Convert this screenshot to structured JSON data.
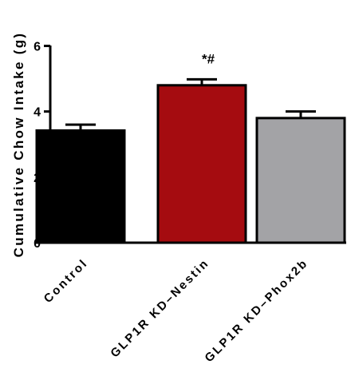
{
  "chart_data": {
    "type": "bar",
    "ylabel": "Cumulative Chow Intake (g)",
    "xlabel": "",
    "ylim": [
      0,
      6
    ],
    "yticks": [
      "0",
      "2",
      "4",
      "6"
    ],
    "categories": [
      "Control",
      "GLP1R KD–Nestin",
      "GLP1R KD–Phox2b"
    ],
    "values": [
      3.42,
      4.8,
      3.8
    ],
    "errors": [
      0.18,
      0.18,
      0.2
    ],
    "colors": [
      "#000000",
      "#a50c10",
      "#a3a3a6"
    ],
    "annotations": [
      "",
      "*#",
      ""
    ],
    "grid": false,
    "legend": "none"
  }
}
